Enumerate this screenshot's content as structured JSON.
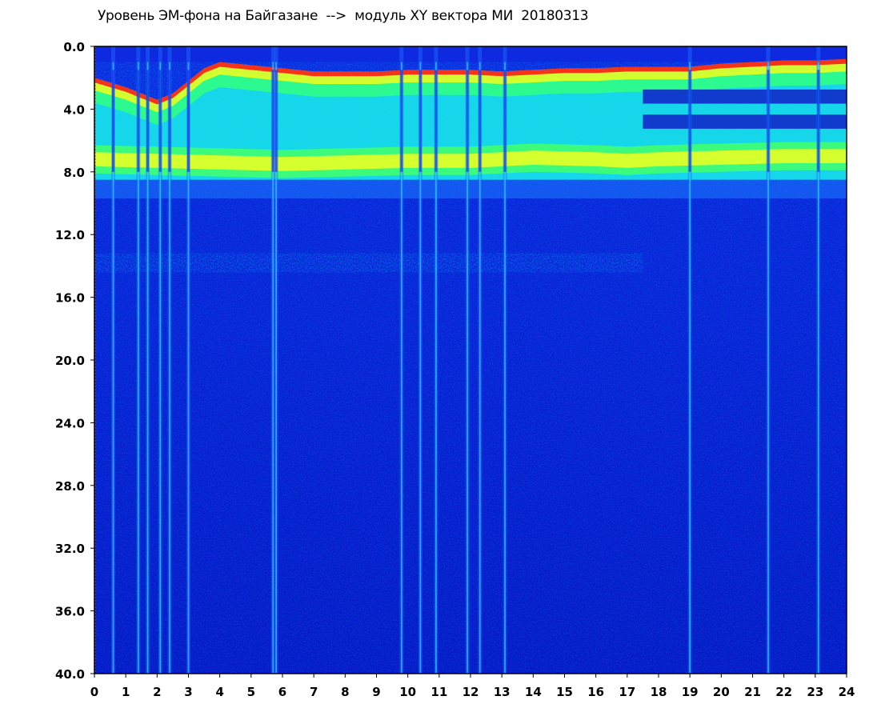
{
  "chart_data": {
    "type": "heatmap",
    "title": "Уровень ЭМ-фона на Байгазане  -->  модуль XY вектора МИ  20180313",
    "xlim": [
      0,
      24
    ],
    "ylim": [
      0,
      40
    ],
    "y_inverted": true,
    "x_ticks": [
      "0",
      "1",
      "2",
      "3",
      "4",
      "5",
      "6",
      "7",
      "8",
      "9",
      "10",
      "11",
      "12",
      "13",
      "14",
      "15",
      "16",
      "17",
      "18",
      "19",
      "20",
      "21",
      "22",
      "23",
      "24"
    ],
    "y_ticks": [
      "0.0",
      "4.0",
      "8.0",
      "12.0",
      "16.0",
      "20.0",
      "24.0",
      "28.0",
      "32.0",
      "36.0",
      "40.0"
    ],
    "colormap": [
      "#0000ff",
      "#00c8ff",
      "#00ff80",
      "#ffff00",
      "#ff0000"
    ],
    "background_color": "#0a1fd6",
    "grid": false,
    "legend": "none",
    "upper_band_edge": [
      [
        0,
        2.0
      ],
      [
        0.5,
        2.3
      ],
      [
        1,
        2.6
      ],
      [
        1.5,
        3.0
      ],
      [
        2,
        3.4
      ],
      [
        2.5,
        3.0
      ],
      [
        3,
        2.2
      ],
      [
        3.5,
        1.4
      ],
      [
        4,
        1.0
      ],
      [
        5,
        1.2
      ],
      [
        6,
        1.4
      ],
      [
        7,
        1.6
      ],
      [
        8,
        1.6
      ],
      [
        9,
        1.6
      ],
      [
        10,
        1.5
      ],
      [
        11,
        1.5
      ],
      [
        12,
        1.5
      ],
      [
        13,
        1.6
      ],
      [
        14,
        1.5
      ],
      [
        15,
        1.4
      ],
      [
        16,
        1.4
      ],
      [
        17,
        1.3
      ],
      [
        18,
        1.3
      ],
      [
        19,
        1.3
      ],
      [
        20,
        1.1
      ],
      [
        21,
        1.0
      ],
      [
        22,
        0.9
      ],
      [
        23,
        0.9
      ],
      [
        24,
        0.8
      ]
    ],
    "bright_band_center": [
      [
        0,
        7.2
      ],
      [
        2,
        7.3
      ],
      [
        4,
        7.4
      ],
      [
        6,
        7.5
      ],
      [
        8,
        7.4
      ],
      [
        10,
        7.3
      ],
      [
        12,
        7.3
      ],
      [
        14,
        7.1
      ],
      [
        16,
        7.2
      ],
      [
        17,
        7.3
      ],
      [
        18,
        7.2
      ],
      [
        20,
        7.1
      ],
      [
        22,
        7.0
      ],
      [
        24,
        7.0
      ]
    ],
    "lower_band_edge_y": 8.5,
    "faint_band_y": 13.8,
    "faint_band_x": [
      0,
      17.5
    ],
    "dark_bands_after_hour": 17.5,
    "dark_bands_y": [
      3.2,
      4.8
    ],
    "vertical_streaks_hours": [
      0.6,
      1.4,
      1.7,
      2.1,
      2.4,
      3.0,
      5.7,
      5.8,
      9.8,
      10.4,
      10.9,
      11.9,
      12.3,
      13.1,
      19.0,
      21.5,
      23.1
    ]
  }
}
